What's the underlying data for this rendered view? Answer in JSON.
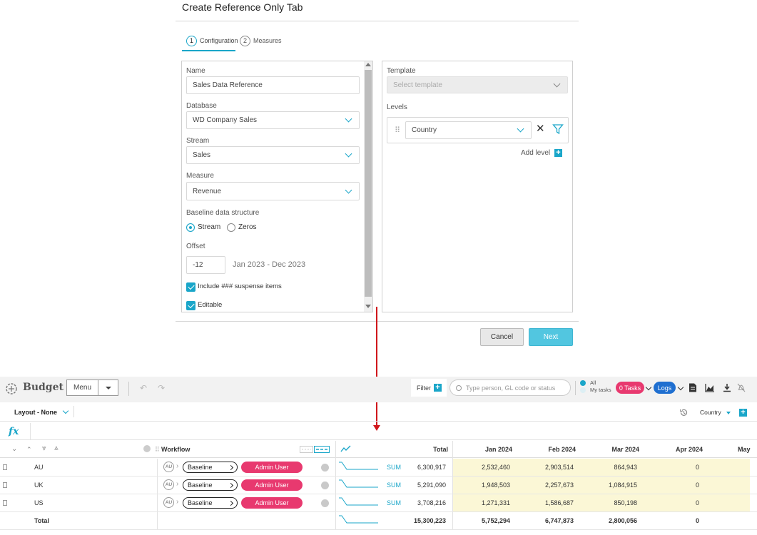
{
  "dialog": {
    "title": "Create Reference Only Tab",
    "steps": [
      {
        "num": "1",
        "label": "Configuration"
      },
      {
        "num": "2",
        "label": "Measures"
      }
    ],
    "left": {
      "name_label": "Name",
      "name_value": "Sales Data Reference",
      "database_label": "Database",
      "database_value": "WD Company Sales",
      "stream_label": "Stream",
      "stream_value": "Sales",
      "measure_label": "Measure",
      "measure_value": "Revenue",
      "baseline_label": "Baseline data structure",
      "baseline_options": [
        "Stream",
        "Zeros"
      ],
      "offset_label": "Offset",
      "offset_value": "-12",
      "offset_range": "Jan 2023 - Dec 2023",
      "include_suspense_label": "Include ### suspense items",
      "editable_label": "Editable"
    },
    "right": {
      "template_label": "Template",
      "template_placeholder": "Select template",
      "levels_label": "Levels",
      "level_value": "Country",
      "add_level_label": "Add level"
    },
    "cancel_label": "Cancel",
    "next_label": "Next"
  },
  "app": {
    "title": "Budget",
    "menu_label": "Menu",
    "filter_label": "Filter",
    "search_placeholder": "Type person, GL code or status",
    "scope_all": "All",
    "scope_mine": "My tasks",
    "tasks_badge": "0 Tasks",
    "logs_label": "Logs",
    "layout_label": "Layout - None",
    "country_dim": "Country",
    "fx_label": "fx"
  },
  "grid": {
    "workflow_header": "Workflow",
    "total_header": "Total",
    "months": [
      "Jan 2024",
      "Feb 2024",
      "Mar 2024",
      "Apr 2024",
      "May"
    ],
    "rows": [
      {
        "name": "AU",
        "badge": "AU",
        "stage": "Baseline",
        "owner": "Admin User",
        "agg": "SUM",
        "total": "6,300,917",
        "m": [
          "2,532,460",
          "2,903,514",
          "864,943",
          "0"
        ]
      },
      {
        "name": "UK",
        "badge": "AU",
        "stage": "Baseline",
        "owner": "Admin User",
        "agg": "SUM",
        "total": "5,291,090",
        "m": [
          "1,948,503",
          "2,257,673",
          "1,084,915",
          "0"
        ]
      },
      {
        "name": "US",
        "badge": "AU",
        "stage": "Baseline",
        "owner": "Admin User",
        "agg": "SUM",
        "total": "3,708,216",
        "m": [
          "1,271,331",
          "1,586,687",
          "850,198",
          "0"
        ]
      }
    ],
    "total_row": {
      "name": "Total",
      "total": "15,300,223",
      "m": [
        "5,752,294",
        "6,747,873",
        "2,800,056",
        "0"
      ]
    }
  },
  "colors": {
    "accent": "#1aa6c9",
    "pink": "#e8396f",
    "blue": "#1f6fd0",
    "arrow": "#d0161b",
    "highlight": "#fbf7d6"
  }
}
